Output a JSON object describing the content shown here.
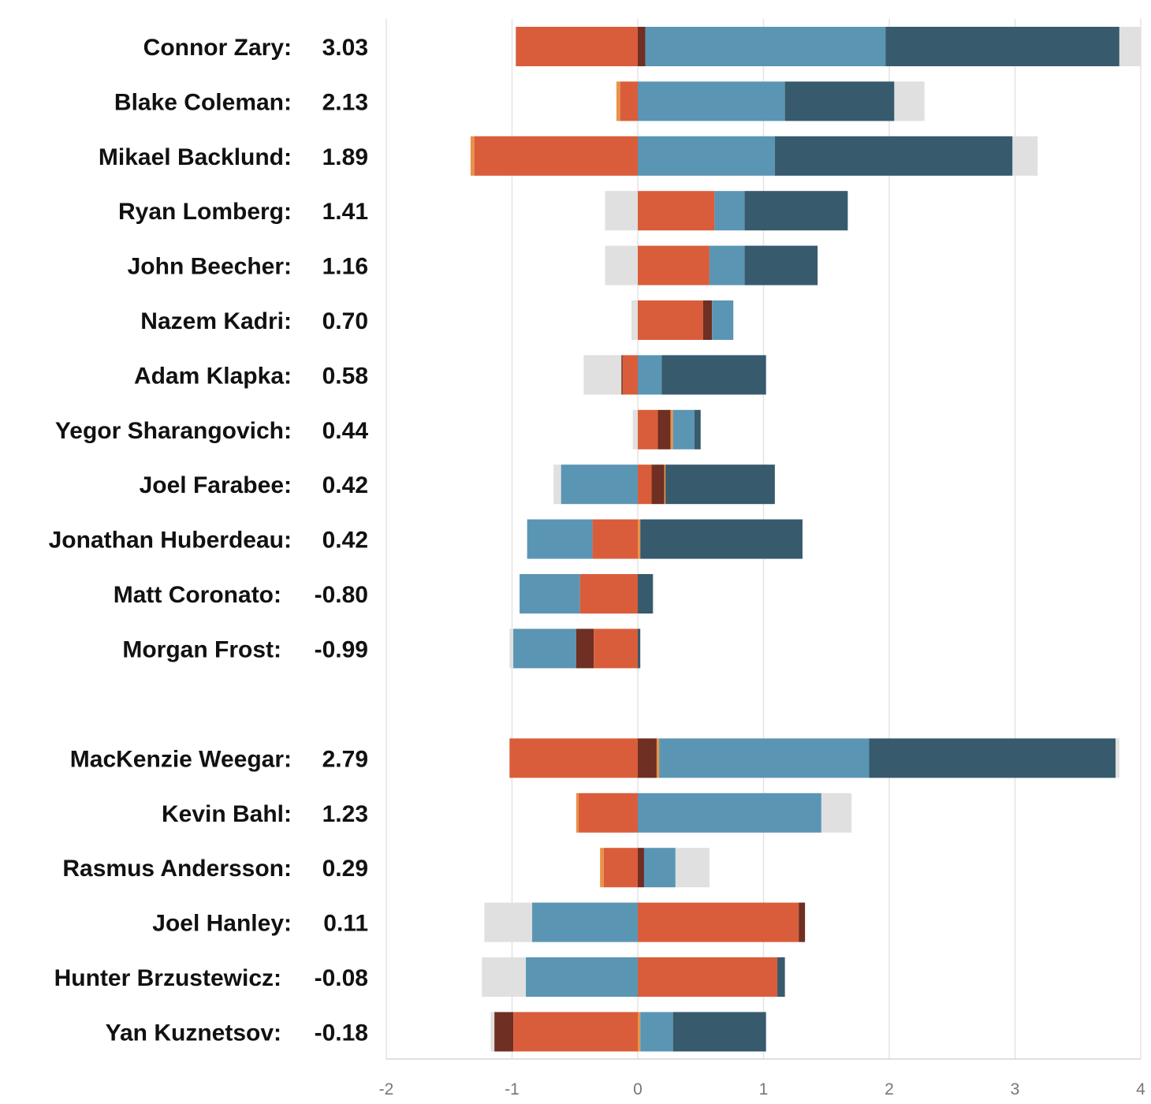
{
  "chart_data": {
    "type": "bar",
    "orientation": "horizontal",
    "stacked": "diverging",
    "title": "",
    "xlabel": "",
    "ylabel": "",
    "xlim": [
      -2,
      4
    ],
    "x_ticks": [
      "-2",
      "-1",
      "0",
      "1",
      "2",
      "3",
      "4"
    ],
    "grid": "vertical",
    "legend": "none",
    "colors": {
      "orange_red": "#d95d3a",
      "light_orange": "#e8934a",
      "dark_brown": "#6f2f22",
      "steel_blue": "#5b95b4",
      "dark_slate": "#375a6d",
      "light_gray": "#e0e0e0"
    },
    "groups": [
      {
        "rows": [
          {
            "name": "Connor Zary:",
            "value": "3.03",
            "segments": [
              {
                "c": "orange_red",
                "from": -0.97,
                "to": 0
              },
              {
                "c": "dark_brown",
                "from": 0,
                "to": 0.06
              },
              {
                "c": "steel_blue",
                "from": 0.06,
                "to": 1.97
              },
              {
                "c": "dark_slate",
                "from": 1.97,
                "to": 3.83
              },
              {
                "c": "light_gray",
                "from": 3.83,
                "to": 4.0
              }
            ]
          },
          {
            "name": "Blake Coleman:",
            "value": "2.13",
            "segments": [
              {
                "c": "light_orange",
                "from": -0.17,
                "to": -0.14
              },
              {
                "c": "orange_red",
                "from": -0.14,
                "to": 0
              },
              {
                "c": "steel_blue",
                "from": 0,
                "to": 1.17
              },
              {
                "c": "dark_slate",
                "from": 1.17,
                "to": 2.04
              },
              {
                "c": "light_gray",
                "from": 2.04,
                "to": 2.28
              }
            ]
          },
          {
            "name": "Mikael Backlund:",
            "value": "1.89",
            "segments": [
              {
                "c": "light_orange",
                "from": -1.33,
                "to": -1.3
              },
              {
                "c": "orange_red",
                "from": -1.3,
                "to": 0
              },
              {
                "c": "steel_blue",
                "from": 0,
                "to": 1.09
              },
              {
                "c": "dark_slate",
                "from": 1.09,
                "to": 2.98
              },
              {
                "c": "light_gray",
                "from": 2.98,
                "to": 3.18
              }
            ]
          },
          {
            "name": "Ryan Lomberg:",
            "value": "1.41",
            "segments": [
              {
                "c": "light_gray",
                "from": -0.26,
                "to": 0
              },
              {
                "c": "orange_red",
                "from": 0,
                "to": 0.61
              },
              {
                "c": "steel_blue",
                "from": 0.61,
                "to": 0.85
              },
              {
                "c": "dark_slate",
                "from": 0.85,
                "to": 1.67
              }
            ]
          },
          {
            "name": "John Beecher:",
            "value": "1.16",
            "segments": [
              {
                "c": "light_gray",
                "from": -0.26,
                "to": 0
              },
              {
                "c": "orange_red",
                "from": 0,
                "to": 0.57
              },
              {
                "c": "steel_blue",
                "from": 0.57,
                "to": 0.85
              },
              {
                "c": "dark_slate",
                "from": 0.85,
                "to": 1.43
              }
            ]
          },
          {
            "name": "Nazem Kadri:",
            "value": "0.70",
            "segments": [
              {
                "c": "light_gray",
                "from": -0.05,
                "to": 0
              },
              {
                "c": "orange_red",
                "from": 0,
                "to": 0.52
              },
              {
                "c": "dark_brown",
                "from": 0.52,
                "to": 0.59
              },
              {
                "c": "steel_blue",
                "from": 0.59,
                "to": 0.76
              }
            ]
          },
          {
            "name": "Adam Klapka:",
            "value": "0.58",
            "segments": [
              {
                "c": "light_gray",
                "from": -0.43,
                "to": -0.13
              },
              {
                "c": "dark_brown",
                "from": -0.13,
                "to": -0.12
              },
              {
                "c": "orange_red",
                "from": -0.12,
                "to": 0
              },
              {
                "c": "steel_blue",
                "from": 0,
                "to": 0.19
              },
              {
                "c": "dark_slate",
                "from": 0.19,
                "to": 1.02
              }
            ]
          },
          {
            "name": "Yegor Sharangovich:",
            "value": "0.44",
            "segments": [
              {
                "c": "light_gray",
                "from": -0.04,
                "to": 0
              },
              {
                "c": "orange_red",
                "from": 0,
                "to": 0.16
              },
              {
                "c": "dark_brown",
                "from": 0.16,
                "to": 0.26
              },
              {
                "c": "light_orange",
                "from": 0.26,
                "to": 0.28
              },
              {
                "c": "steel_blue",
                "from": 0.28,
                "to": 0.45
              },
              {
                "c": "dark_slate",
                "from": 0.45,
                "to": 0.5
              }
            ]
          },
          {
            "name": "Joel Farabee:",
            "value": "0.42",
            "segments": [
              {
                "c": "light_gray",
                "from": -0.67,
                "to": -0.61
              },
              {
                "c": "steel_blue",
                "from": -0.61,
                "to": 0
              },
              {
                "c": "orange_red",
                "from": 0,
                "to": 0.11
              },
              {
                "c": "dark_brown",
                "from": 0.11,
                "to": 0.21
              },
              {
                "c": "light_orange",
                "from": 0.21,
                "to": 0.22
              },
              {
                "c": "dark_slate",
                "from": 0.22,
                "to": 1.09
              }
            ]
          },
          {
            "name": "Jonathan Huberdeau:",
            "value": "0.42",
            "segments": [
              {
                "c": "steel_blue",
                "from": -0.88,
                "to": -0.36
              },
              {
                "c": "orange_red",
                "from": -0.36,
                "to": 0
              },
              {
                "c": "light_orange",
                "from": 0,
                "to": 0.02
              },
              {
                "c": "dark_slate",
                "from": 0.02,
                "to": 1.31
              }
            ]
          },
          {
            "name": "Matt Coronato:",
            "value": "-0.80",
            "segments": [
              {
                "c": "steel_blue",
                "from": -0.94,
                "to": -0.46
              },
              {
                "c": "orange_red",
                "from": -0.46,
                "to": 0
              },
              {
                "c": "dark_slate",
                "from": 0,
                "to": 0.12
              },
              {
                "c": "light_gray",
                "from": 0.12,
                "to": 0.13
              }
            ]
          },
          {
            "name": "Morgan Frost:",
            "value": "-0.99",
            "segments": [
              {
                "c": "light_gray",
                "from": -1.02,
                "to": -0.99
              },
              {
                "c": "steel_blue",
                "from": -0.99,
                "to": -0.49
              },
              {
                "c": "dark_brown",
                "from": -0.49,
                "to": -0.35
              },
              {
                "c": "orange_red",
                "from": -0.35,
                "to": 0
              },
              {
                "c": "dark_slate",
                "from": 0,
                "to": 0.02
              }
            ]
          }
        ]
      },
      {
        "rows": [
          {
            "name": "MacKenzie Weegar:",
            "value": "2.79",
            "segments": [
              {
                "c": "orange_red",
                "from": -1.02,
                "to": 0
              },
              {
                "c": "dark_brown",
                "from": 0,
                "to": 0.15
              },
              {
                "c": "light_orange",
                "from": 0.15,
                "to": 0.17
              },
              {
                "c": "steel_blue",
                "from": 0.17,
                "to": 1.84
              },
              {
                "c": "dark_slate",
                "from": 1.84,
                "to": 3.8
              },
              {
                "c": "light_gray",
                "from": 3.8,
                "to": 3.83
              }
            ]
          },
          {
            "name": "Kevin Bahl:",
            "value": "1.23",
            "segments": [
              {
                "c": "light_orange",
                "from": -0.49,
                "to": -0.47
              },
              {
                "c": "orange_red",
                "from": -0.47,
                "to": 0
              },
              {
                "c": "steel_blue",
                "from": 0,
                "to": 1.46
              },
              {
                "c": "light_gray",
                "from": 1.46,
                "to": 1.7
              }
            ]
          },
          {
            "name": "Rasmus Andersson:",
            "value": "0.29",
            "segments": [
              {
                "c": "light_orange",
                "from": -0.3,
                "to": -0.27
              },
              {
                "c": "orange_red",
                "from": -0.27,
                "to": 0
              },
              {
                "c": "dark_brown",
                "from": 0,
                "to": 0.05
              },
              {
                "c": "steel_blue",
                "from": 0.05,
                "to": 0.3
              },
              {
                "c": "light_gray",
                "from": 0.3,
                "to": 0.57
              }
            ]
          },
          {
            "name": "Joel Hanley:",
            "value": "0.11",
            "segments": [
              {
                "c": "light_gray",
                "from": -1.22,
                "to": -0.84
              },
              {
                "c": "steel_blue",
                "from": -0.84,
                "to": 0
              },
              {
                "c": "orange_red",
                "from": 0,
                "to": 1.28
              },
              {
                "c": "dark_brown",
                "from": 1.28,
                "to": 1.33
              }
            ]
          },
          {
            "name": "Hunter Brzustewicz:",
            "value": "-0.08",
            "segments": [
              {
                "c": "light_gray",
                "from": -1.24,
                "to": -0.89
              },
              {
                "c": "steel_blue",
                "from": -0.89,
                "to": 0
              },
              {
                "c": "orange_red",
                "from": 0,
                "to": 1.11
              },
              {
                "c": "dark_slate",
                "from": 1.11,
                "to": 1.17
              }
            ]
          },
          {
            "name": "Yan Kuznetsov:",
            "value": "-0.18",
            "segments": [
              {
                "c": "light_gray",
                "from": -1.17,
                "to": -1.14
              },
              {
                "c": "dark_brown",
                "from": -1.14,
                "to": -0.99
              },
              {
                "c": "orange_red",
                "from": -0.99,
                "to": 0
              },
              {
                "c": "light_orange",
                "from": 0,
                "to": 0.02
              },
              {
                "c": "steel_blue",
                "from": 0.02,
                "to": 0.28
              },
              {
                "c": "dark_slate",
                "from": 0.28,
                "to": 1.02
              }
            ]
          }
        ]
      }
    ]
  }
}
